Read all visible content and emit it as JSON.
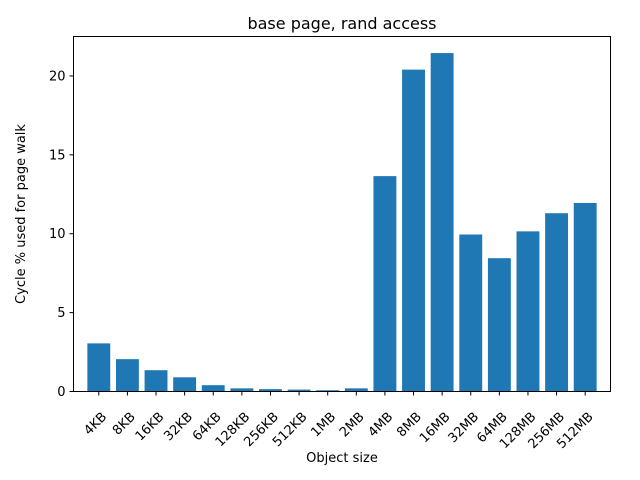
{
  "chart_data": {
    "type": "bar",
    "title": "base page, rand access",
    "xlabel": "Object size",
    "ylabel": "Cycle % used for page walk",
    "categories": [
      "4KB",
      "8KB",
      "16KB",
      "32KB",
      "64KB",
      "128KB",
      "256KB",
      "512KB",
      "1MB",
      "2MB",
      "4MB",
      "8MB",
      "16MB",
      "32MB",
      "64MB",
      "128MB",
      "256MB",
      "512MB"
    ],
    "values": [
      3.05,
      2.05,
      1.35,
      0.9,
      0.4,
      0.2,
      0.15,
      0.12,
      0.08,
      0.2,
      13.65,
      20.4,
      21.45,
      9.95,
      8.45,
      10.15,
      11.3,
      11.95
    ],
    "ylim": [
      0,
      22.5
    ],
    "yticks": [
      0,
      5,
      10,
      15,
      20
    ],
    "bar_color": "#1f77b4",
    "grid": false,
    "legend": "none"
  }
}
